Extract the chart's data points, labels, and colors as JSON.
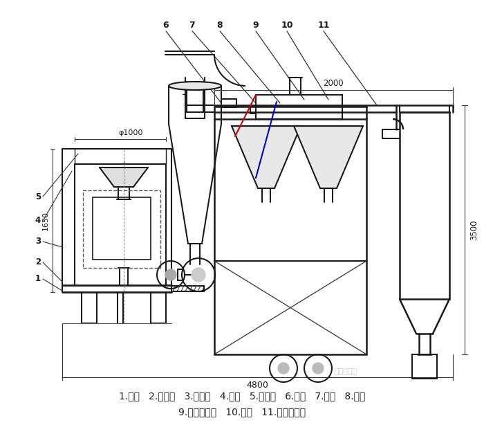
{
  "bg_color": "#ffffff",
  "line_color": "#1a1a1a",
  "legend_line1": "1.底座   2.回风道   3.激振器   4.筛网   5.进料斗   6.风机   7.绞龙   8.料仓",
  "legend_line2": "9.旋风分离器   10.支架   11.布袋除尘器",
  "dim_1650": "1650",
  "dim_phi1000": "φ1000",
  "dim_2000": "2000",
  "dim_3500": "3500",
  "dim_4800": "4800"
}
